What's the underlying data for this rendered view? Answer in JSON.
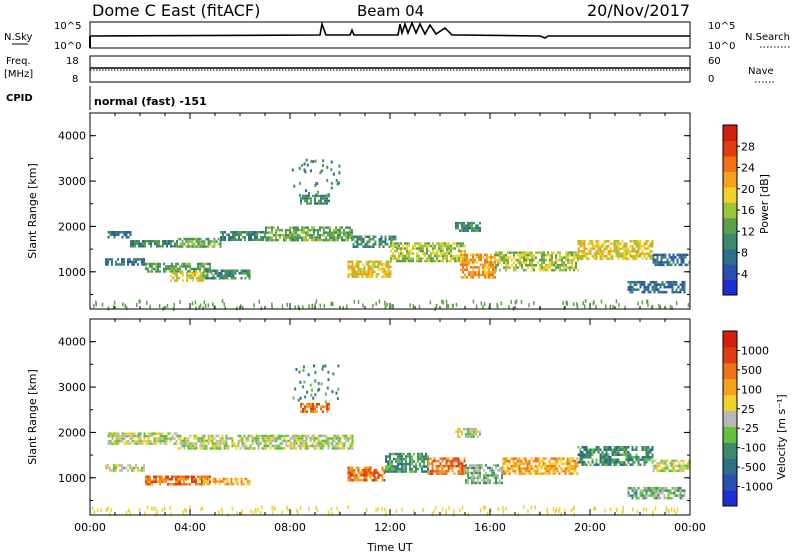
{
  "header": {
    "station": "Dome C East (fitACF)",
    "beam": "Beam 04",
    "date": "20/Nov/2017"
  },
  "panels": {
    "nsky_label": "N.Sky",
    "nsky_ticks": [
      "10^5",
      "10^0"
    ],
    "nsearch_label": "N.Search",
    "nsearch_ticks": [
      "10^5",
      "10^0"
    ],
    "freq_label": "Freq.",
    "freq_unit": "[MHz]",
    "freq_ticks": [
      "18",
      "8"
    ],
    "nave_label": "Nave",
    "nave_ticks": [
      "60",
      "0"
    ],
    "cpid_label": "CPID",
    "cpid_text": "normal (fast) -151"
  },
  "chart_data": [
    {
      "type": "heatmap",
      "name": "power",
      "xlabel": "Time UT",
      "ylabel": "Slant Range [km]",
      "x_ticks": [
        "00:00",
        "04:00",
        "08:00",
        "12:00",
        "16:00",
        "20:00",
        "00:00"
      ],
      "y_ticks": [
        1000,
        2000,
        3000,
        4000
      ],
      "xlim_hours": [
        0,
        24
      ],
      "ylim_km": [
        180,
        4500
      ],
      "colorbar_label": "Power [dB]",
      "colorbar_ticks": [
        4,
        8,
        12,
        16,
        20,
        24,
        28
      ],
      "colorbar_colors": [
        "#1f2bd6",
        "#2a4fb3",
        "#2f6e8a",
        "#3d8a6a",
        "#5aa24a",
        "#9bc43a",
        "#f2d228",
        "#f5a21a",
        "#f07318",
        "#e23d12",
        "#d41e10"
      ],
      "echo_bands": [
        {
          "t0": 0.7,
          "t1": 1.6,
          "r0": 1750,
          "r1": 1900,
          "level": 2
        },
        {
          "t0": 1.6,
          "t1": 3.5,
          "r0": 1550,
          "r1": 1700,
          "level": 3
        },
        {
          "t0": 3.5,
          "t1": 5.2,
          "r0": 1550,
          "r1": 1750,
          "level": 4
        },
        {
          "t0": 5.2,
          "t1": 7.0,
          "r0": 1700,
          "r1": 1900,
          "level": 3
        },
        {
          "t0": 7.0,
          "t1": 10.5,
          "r0": 1700,
          "r1": 2000,
          "level": 4
        },
        {
          "t0": 10.5,
          "t1": 12.2,
          "r0": 1550,
          "r1": 1800,
          "level": 3
        },
        {
          "t0": 0.6,
          "t1": 2.2,
          "r0": 1150,
          "r1": 1300,
          "level": 2
        },
        {
          "t0": 2.2,
          "t1": 4.8,
          "r0": 1000,
          "r1": 1200,
          "level": 4
        },
        {
          "t0": 3.2,
          "t1": 4.5,
          "r0": 780,
          "r1": 1000,
          "level": 6
        },
        {
          "t0": 4.5,
          "t1": 6.4,
          "r0": 850,
          "r1": 1050,
          "level": 3
        },
        {
          "t0": 8.4,
          "t1": 9.6,
          "r0": 2500,
          "r1": 2700,
          "level": 3
        },
        {
          "t0": 10.3,
          "t1": 12.0,
          "r0": 900,
          "r1": 1250,
          "level": 6
        },
        {
          "t0": 12.0,
          "t1": 15.0,
          "r0": 1250,
          "r1": 1650,
          "level": 5
        },
        {
          "t0": 14.8,
          "t1": 16.2,
          "r0": 900,
          "r1": 1400,
          "level": 7
        },
        {
          "t0": 16.2,
          "t1": 19.5,
          "r0": 1050,
          "r1": 1450,
          "level": 5
        },
        {
          "t0": 19.5,
          "t1": 22.5,
          "r0": 1300,
          "r1": 1700,
          "level": 6
        },
        {
          "t0": 22.5,
          "t1": 24.0,
          "r0": 1150,
          "r1": 1400,
          "level": 2
        },
        {
          "t0": 21.5,
          "t1": 23.8,
          "r0": 550,
          "r1": 800,
          "level": 2
        },
        {
          "t0": 14.6,
          "t1": 15.6,
          "r0": 1900,
          "r1": 2100,
          "level": 3
        }
      ]
    },
    {
      "type": "heatmap",
      "name": "velocity",
      "xlabel": "Time UT",
      "ylabel": "Slant Range [km]",
      "x_ticks": [
        "00:00",
        "04:00",
        "08:00",
        "12:00",
        "16:00",
        "20:00",
        "00:00"
      ],
      "y_ticks": [
        1000,
        2000,
        3000,
        4000
      ],
      "xlim_hours": [
        0,
        24
      ],
      "ylim_km": [
        180,
        4500
      ],
      "colorbar_label": "Velocity [m s⁻¹]",
      "colorbar_ticks": [
        "1000",
        "500",
        "100",
        "25",
        "-25",
        "-100",
        "-500",
        "-1000"
      ],
      "colorbar_colors": [
        "#1f2bd6",
        "#2a4fb3",
        "#2f6e8a",
        "#3d8a6a",
        "#62c23a",
        "#b8b8b8",
        "#f2d228",
        "#f5a21a",
        "#f07318",
        "#e23d12",
        "#d41e10"
      ],
      "echo_bands": [
        {
          "t0": 0.7,
          "t1": 3.5,
          "r0": 1750,
          "r1": 2000,
          "level": 5
        },
        {
          "t0": 3.5,
          "t1": 10.5,
          "r0": 1650,
          "r1": 1950,
          "level": 5
        },
        {
          "t0": 0.6,
          "t1": 2.2,
          "r0": 1150,
          "r1": 1300,
          "level": 5
        },
        {
          "t0": 2.2,
          "t1": 4.8,
          "r0": 850,
          "r1": 1050,
          "level": 8
        },
        {
          "t0": 4.5,
          "t1": 6.4,
          "r0": 850,
          "r1": 1000,
          "level": 7
        },
        {
          "t0": 8.4,
          "t1": 9.6,
          "r0": 2450,
          "r1": 2650,
          "level": 8
        },
        {
          "t0": 10.3,
          "t1": 11.8,
          "r0": 950,
          "r1": 1250,
          "level": 8
        },
        {
          "t0": 11.8,
          "t1": 13.5,
          "r0": 1150,
          "r1": 1550,
          "level": 3
        },
        {
          "t0": 13.5,
          "t1": 15.0,
          "r0": 1100,
          "r1": 1450,
          "level": 8
        },
        {
          "t0": 15.0,
          "t1": 16.5,
          "r0": 900,
          "r1": 1300,
          "level": 4
        },
        {
          "t0": 16.5,
          "t1": 19.5,
          "r0": 1100,
          "r1": 1450,
          "level": 7
        },
        {
          "t0": 19.5,
          "t1": 22.5,
          "r0": 1300,
          "r1": 1700,
          "level": 3
        },
        {
          "t0": 22.5,
          "t1": 24.0,
          "r0": 1150,
          "r1": 1400,
          "level": 5
        },
        {
          "t0": 21.5,
          "t1": 23.8,
          "r0": 550,
          "r1": 800,
          "level": 4
        },
        {
          "t0": 14.6,
          "t1": 15.6,
          "r0": 1900,
          "r1": 2100,
          "level": 5
        }
      ]
    }
  ]
}
